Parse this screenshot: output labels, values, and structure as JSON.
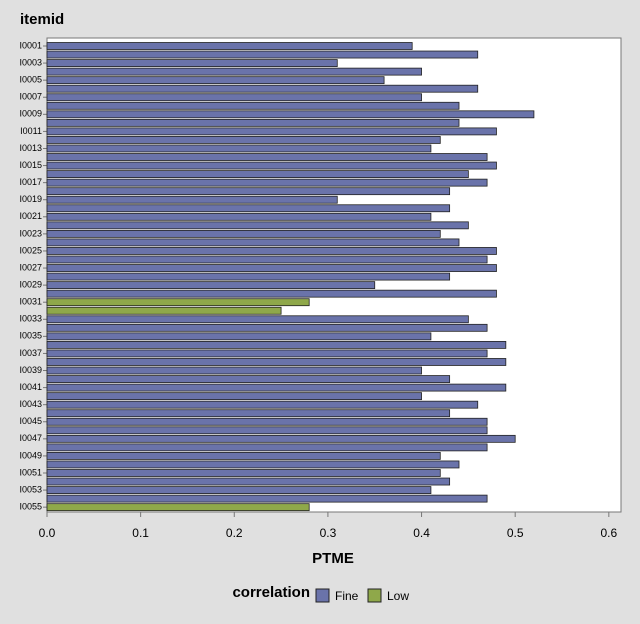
{
  "chart_data": {
    "type": "hbar",
    "title": "itemid",
    "x_label": "PTME",
    "legend_title": "correlation",
    "categories": [
      "I0001",
      null,
      "I0003",
      null,
      "I0005",
      null,
      "I0007",
      null,
      "I0009",
      null,
      "I0011",
      null,
      "I0013",
      null,
      "I0015",
      null,
      "I0017",
      null,
      "I0019",
      null,
      "I0021",
      null,
      "I0023",
      null,
      "I0025",
      null,
      "I0027",
      null,
      "I0029",
      null,
      "I0031",
      null,
      "I0033",
      null,
      "I0035",
      null,
      "I0037",
      null,
      "I0039",
      null,
      "I0041",
      null,
      "I0043",
      null,
      "I0045",
      null,
      "I0047",
      null,
      "I0049",
      null,
      "I0051",
      null,
      "I0053",
      null,
      "I0055"
    ],
    "series": [
      {
        "name": "Fine",
        "color": "#6a73aa",
        "values": [
          0.39,
          0.46,
          0.31,
          0.4,
          0.36,
          0.46,
          0.4,
          0.44,
          0.52,
          0.44,
          0.48,
          0.42,
          0.41,
          0.47,
          0.48,
          0.45,
          0.47,
          0.43,
          0.31,
          0.43,
          0.41,
          0.45,
          0.42,
          0.44,
          0.48,
          0.47,
          0.48,
          0.43,
          0.35,
          0.48,
          null,
          null,
          0.45,
          0.47,
          0.41,
          0.49,
          0.47,
          0.49,
          0.4,
          0.43,
          0.49,
          0.4,
          0.46,
          0.43,
          0.47,
          0.47,
          0.5,
          0.47,
          0.42,
          0.44,
          0.42,
          0.43,
          0.41,
          0.47,
          null
        ]
      },
      {
        "name": "Low",
        "color": "#8fa84a",
        "values": [
          null,
          null,
          null,
          null,
          null,
          null,
          null,
          null,
          null,
          null,
          null,
          null,
          null,
          null,
          null,
          null,
          null,
          null,
          null,
          null,
          null,
          null,
          null,
          null,
          null,
          null,
          null,
          null,
          null,
          null,
          0.28,
          0.25,
          null,
          null,
          null,
          null,
          null,
          null,
          null,
          null,
          null,
          null,
          null,
          null,
          null,
          null,
          null,
          null,
          null,
          null,
          null,
          null,
          null,
          null,
          0.28
        ]
      }
    ],
    "xlim": [
      0,
      0.613
    ],
    "xticks": [
      {
        "value": 0,
        "label": "0.0"
      },
      0.1,
      0.2,
      0.3,
      0.4,
      0.5,
      0.6
    ]
  }
}
